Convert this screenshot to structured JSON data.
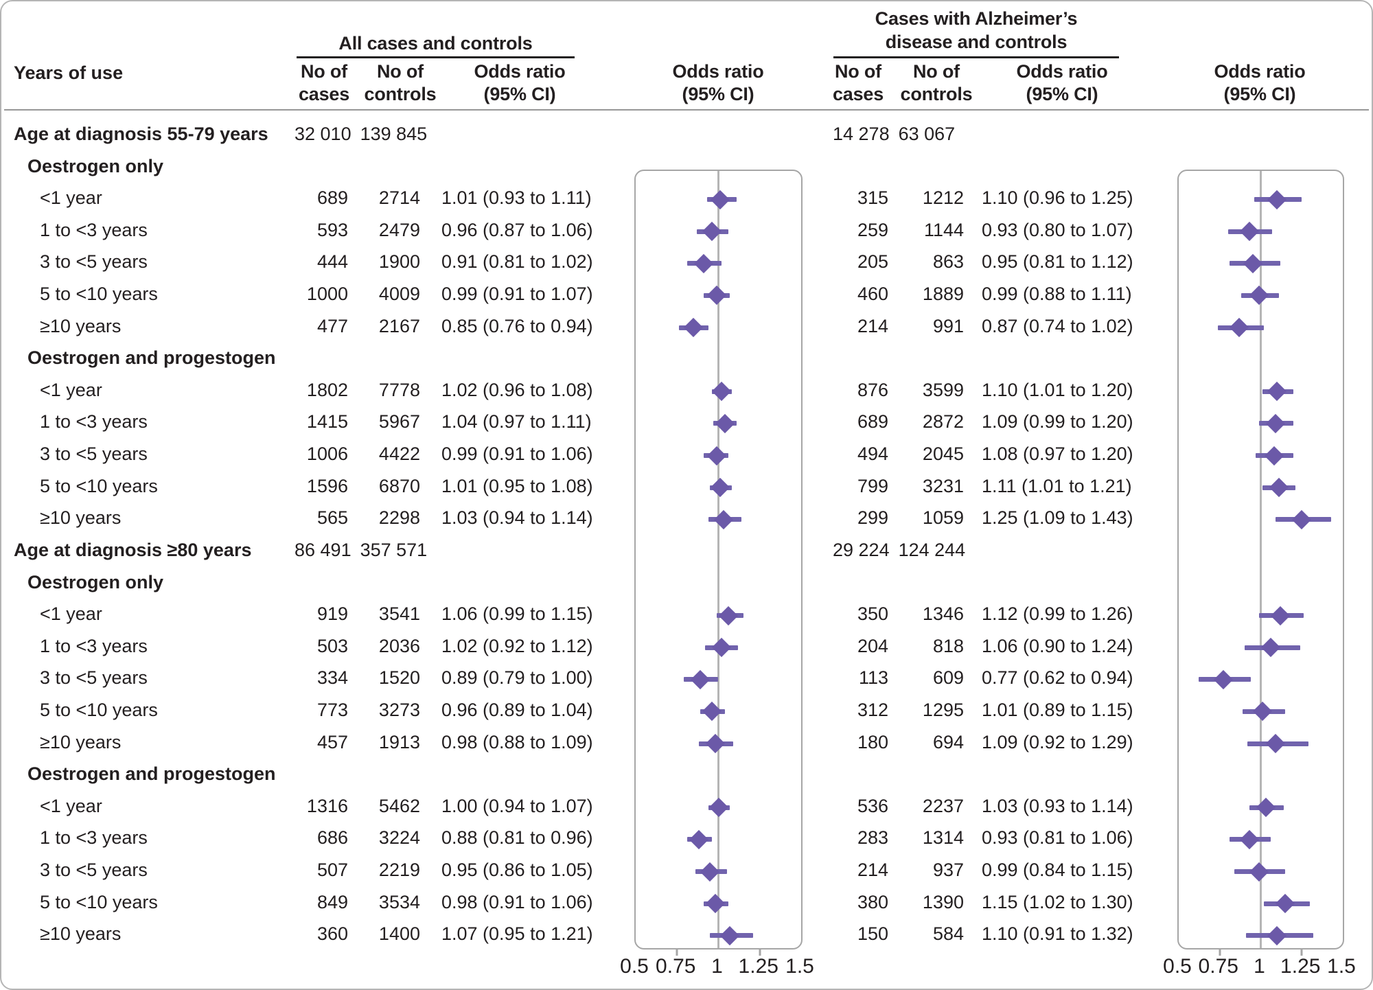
{
  "colors": {
    "marker_purple": "#6b59a8",
    "whisker_purple": "#7163ad",
    "ref_line_gray": "#b5b5b5",
    "panel_border_gray": "#a6a6a6",
    "text": "#231f20"
  },
  "header": {
    "years_of_use": "Years of use",
    "all_title": "All cases and controls",
    "ad_title_line1": "Cases with Alzheimer’s",
    "ad_title_line2": "disease and controls",
    "no_of": "No of",
    "cases": "cases",
    "controls": "controls",
    "odds_ratio": "Odds ratio",
    "ci": "(95% CI)"
  },
  "chart_data": {
    "type": "forest",
    "title": "",
    "xlabel": "Odds ratio (95% CI)",
    "axis": {
      "min": 0.5,
      "max": 1.5,
      "ref": 1,
      "ticks": [
        0.5,
        0.75,
        1,
        1.25,
        1.5
      ],
      "tick_labels": [
        "0.5",
        "0.75",
        "1",
        "1.25",
        "1.5"
      ]
    },
    "series_names": [
      "All cases and controls",
      "Cases with Alzheimer’s disease and controls"
    ],
    "rows": [
      {
        "type": "age",
        "label": "Age at diagnosis 55-79 years",
        "all": {
          "cases": "32 010",
          "controls": "139 845"
        },
        "ad": {
          "cases": "14 278",
          "controls": "63 067"
        }
      },
      {
        "type": "group",
        "label": "Oestrogen only"
      },
      {
        "type": "data",
        "label": "<1 year",
        "all": {
          "cases": "689",
          "controls": "2714",
          "or_text": "1.01 (0.93 to 1.11)",
          "or": 1.01,
          "lo": 0.93,
          "hi": 1.11
        },
        "ad": {
          "cases": "315",
          "controls": "1212",
          "or_text": "1.10 (0.96 to 1.25)",
          "or": 1.1,
          "lo": 0.96,
          "hi": 1.25
        }
      },
      {
        "type": "data",
        "label": "1 to <3 years",
        "all": {
          "cases": "593",
          "controls": "2479",
          "or_text": "0.96 (0.87 to 1.06)",
          "or": 0.96,
          "lo": 0.87,
          "hi": 1.06
        },
        "ad": {
          "cases": "259",
          "controls": "1144",
          "or_text": "0.93 (0.80 to 1.07)",
          "or": 0.93,
          "lo": 0.8,
          "hi": 1.07
        }
      },
      {
        "type": "data",
        "label": "3 to <5 years",
        "all": {
          "cases": "444",
          "controls": "1900",
          "or_text": "0.91 (0.81 to 1.02)",
          "or": 0.91,
          "lo": 0.81,
          "hi": 1.02
        },
        "ad": {
          "cases": "205",
          "controls": "863",
          "or_text": "0.95 (0.81 to 1.12)",
          "or": 0.95,
          "lo": 0.81,
          "hi": 1.12
        }
      },
      {
        "type": "data",
        "label": "5 to <10 years",
        "all": {
          "cases": "1000",
          "controls": "4009",
          "or_text": "0.99 (0.91 to 1.07)",
          "or": 0.99,
          "lo": 0.91,
          "hi": 1.07
        },
        "ad": {
          "cases": "460",
          "controls": "1889",
          "or_text": "0.99 (0.88 to 1.11)",
          "or": 0.99,
          "lo": 0.88,
          "hi": 1.11
        }
      },
      {
        "type": "data",
        "label": "≥10 years",
        "all": {
          "cases": "477",
          "controls": "2167",
          "or_text": "0.85 (0.76 to 0.94)",
          "or": 0.85,
          "lo": 0.76,
          "hi": 0.94
        },
        "ad": {
          "cases": "214",
          "controls": "991",
          "or_text": "0.87 (0.74 to 1.02)",
          "or": 0.87,
          "lo": 0.74,
          "hi": 1.02
        }
      },
      {
        "type": "group",
        "label": "Oestrogen and progestogen"
      },
      {
        "type": "data",
        "label": "<1 year",
        "all": {
          "cases": "1802",
          "controls": "7778",
          "or_text": "1.02 (0.96 to 1.08)",
          "or": 1.02,
          "lo": 0.96,
          "hi": 1.08
        },
        "ad": {
          "cases": "876",
          "controls": "3599",
          "or_text": "1.10 (1.01 to 1.20)",
          "or": 1.1,
          "lo": 1.01,
          "hi": 1.2
        }
      },
      {
        "type": "data",
        "label": "1 to <3 years",
        "all": {
          "cases": "1415",
          "controls": "5967",
          "or_text": "1.04 (0.97 to 1.11)",
          "or": 1.04,
          "lo": 0.97,
          "hi": 1.11
        },
        "ad": {
          "cases": "689",
          "controls": "2872",
          "or_text": "1.09 (0.99 to 1.20)",
          "or": 1.09,
          "lo": 0.99,
          "hi": 1.2
        }
      },
      {
        "type": "data",
        "label": "3 to <5 years",
        "all": {
          "cases": "1006",
          "controls": "4422",
          "or_text": "0.99 (0.91 to 1.06)",
          "or": 0.99,
          "lo": 0.91,
          "hi": 1.06
        },
        "ad": {
          "cases": "494",
          "controls": "2045",
          "or_text": "1.08 (0.97 to 1.20)",
          "or": 1.08,
          "lo": 0.97,
          "hi": 1.2
        }
      },
      {
        "type": "data",
        "label": "5 to <10 years",
        "all": {
          "cases": "1596",
          "controls": "6870",
          "or_text": "1.01 (0.95 to 1.08)",
          "or": 1.01,
          "lo": 0.95,
          "hi": 1.08
        },
        "ad": {
          "cases": "799",
          "controls": "3231",
          "or_text": "1.11 (1.01 to 1.21)",
          "or": 1.11,
          "lo": 1.01,
          "hi": 1.21
        }
      },
      {
        "type": "data",
        "label": "≥10 years",
        "all": {
          "cases": "565",
          "controls": "2298",
          "or_text": "1.03 (0.94 to 1.14)",
          "or": 1.03,
          "lo": 0.94,
          "hi": 1.14
        },
        "ad": {
          "cases": "299",
          "controls": "1059",
          "or_text": "1.25 (1.09 to 1.43)",
          "or": 1.25,
          "lo": 1.09,
          "hi": 1.43
        }
      },
      {
        "type": "age",
        "label": "Age at diagnosis ≥80 years",
        "all": {
          "cases": "86 491",
          "controls": "357 571"
        },
        "ad": {
          "cases": "29 224",
          "controls": "124 244"
        }
      },
      {
        "type": "group",
        "label": "Oestrogen only"
      },
      {
        "type": "data",
        "label": "<1 year",
        "all": {
          "cases": "919",
          "controls": "3541",
          "or_text": "1.06 (0.99 to 1.15)",
          "or": 1.06,
          "lo": 0.99,
          "hi": 1.15
        },
        "ad": {
          "cases": "350",
          "controls": "1346",
          "or_text": "1.12 (0.99 to 1.26)",
          "or": 1.12,
          "lo": 0.99,
          "hi": 1.26
        }
      },
      {
        "type": "data",
        "label": "1 to <3 years",
        "all": {
          "cases": "503",
          "controls": "2036",
          "or_text": "1.02 (0.92 to 1.12)",
          "or": 1.02,
          "lo": 0.92,
          "hi": 1.12
        },
        "ad": {
          "cases": "204",
          "controls": "818",
          "or_text": "1.06 (0.90 to 1.24)",
          "or": 1.06,
          "lo": 0.9,
          "hi": 1.24
        }
      },
      {
        "type": "data",
        "label": "3 to <5 years",
        "all": {
          "cases": "334",
          "controls": "1520",
          "or_text": "0.89 (0.79 to 1.00)",
          "or": 0.89,
          "lo": 0.79,
          "hi": 1.0
        },
        "ad": {
          "cases": "113",
          "controls": "609",
          "or_text": "0.77 (0.62 to 0.94)",
          "or": 0.77,
          "lo": 0.62,
          "hi": 0.94
        }
      },
      {
        "type": "data",
        "label": "5 to <10 years",
        "all": {
          "cases": "773",
          "controls": "3273",
          "or_text": "0.96 (0.89 to 1.04)",
          "or": 0.96,
          "lo": 0.89,
          "hi": 1.04
        },
        "ad": {
          "cases": "312",
          "controls": "1295",
          "or_text": "1.01 (0.89 to 1.15)",
          "or": 1.01,
          "lo": 0.89,
          "hi": 1.15
        }
      },
      {
        "type": "data",
        "label": "≥10 years",
        "all": {
          "cases": "457",
          "controls": "1913",
          "or_text": "0.98 (0.88 to 1.09)",
          "or": 0.98,
          "lo": 0.88,
          "hi": 1.09
        },
        "ad": {
          "cases": "180",
          "controls": "694",
          "or_text": "1.09 (0.92 to 1.29)",
          "or": 1.09,
          "lo": 0.92,
          "hi": 1.29
        }
      },
      {
        "type": "group",
        "label": "Oestrogen and progestogen"
      },
      {
        "type": "data",
        "label": "<1 year",
        "all": {
          "cases": "1316",
          "controls": "5462",
          "or_text": "1.00 (0.94 to 1.07)",
          "or": 1.0,
          "lo": 0.94,
          "hi": 1.07
        },
        "ad": {
          "cases": "536",
          "controls": "2237",
          "or_text": "1.03 (0.93 to 1.14)",
          "or": 1.03,
          "lo": 0.93,
          "hi": 1.14
        }
      },
      {
        "type": "data",
        "label": "1 to <3 years",
        "all": {
          "cases": "686",
          "controls": "3224",
          "or_text": "0.88 (0.81 to 0.96)",
          "or": 0.88,
          "lo": 0.81,
          "hi": 0.96
        },
        "ad": {
          "cases": "283",
          "controls": "1314",
          "or_text": "0.93 (0.81 to 1.06)",
          "or": 0.93,
          "lo": 0.81,
          "hi": 1.06
        }
      },
      {
        "type": "data",
        "label": "3 to <5 years",
        "all": {
          "cases": "507",
          "controls": "2219",
          "or_text": "0.95 (0.86 to 1.05)",
          "or": 0.95,
          "lo": 0.86,
          "hi": 1.05
        },
        "ad": {
          "cases": "214",
          "controls": "937",
          "or_text": "0.99 (0.84 to 1.15)",
          "or": 0.99,
          "lo": 0.84,
          "hi": 1.15
        }
      },
      {
        "type": "data",
        "label": "5 to <10 years",
        "all": {
          "cases": "849",
          "controls": "3534",
          "or_text": "0.98 (0.91 to 1.06)",
          "or": 0.98,
          "lo": 0.91,
          "hi": 1.06
        },
        "ad": {
          "cases": "380",
          "controls": "1390",
          "or_text": "1.15 (1.02 to 1.30)",
          "or": 1.15,
          "lo": 1.02,
          "hi": 1.3
        }
      },
      {
        "type": "data",
        "label": "≥10 years",
        "all": {
          "cases": "360",
          "controls": "1400",
          "or_text": "1.07 (0.95 to 1.21)",
          "or": 1.07,
          "lo": 0.95,
          "hi": 1.21
        },
        "ad": {
          "cases": "150",
          "controls": "584",
          "or_text": "1.10 (0.91 to 1.32)",
          "or": 1.1,
          "lo": 0.91,
          "hi": 1.32
        }
      }
    ]
  }
}
